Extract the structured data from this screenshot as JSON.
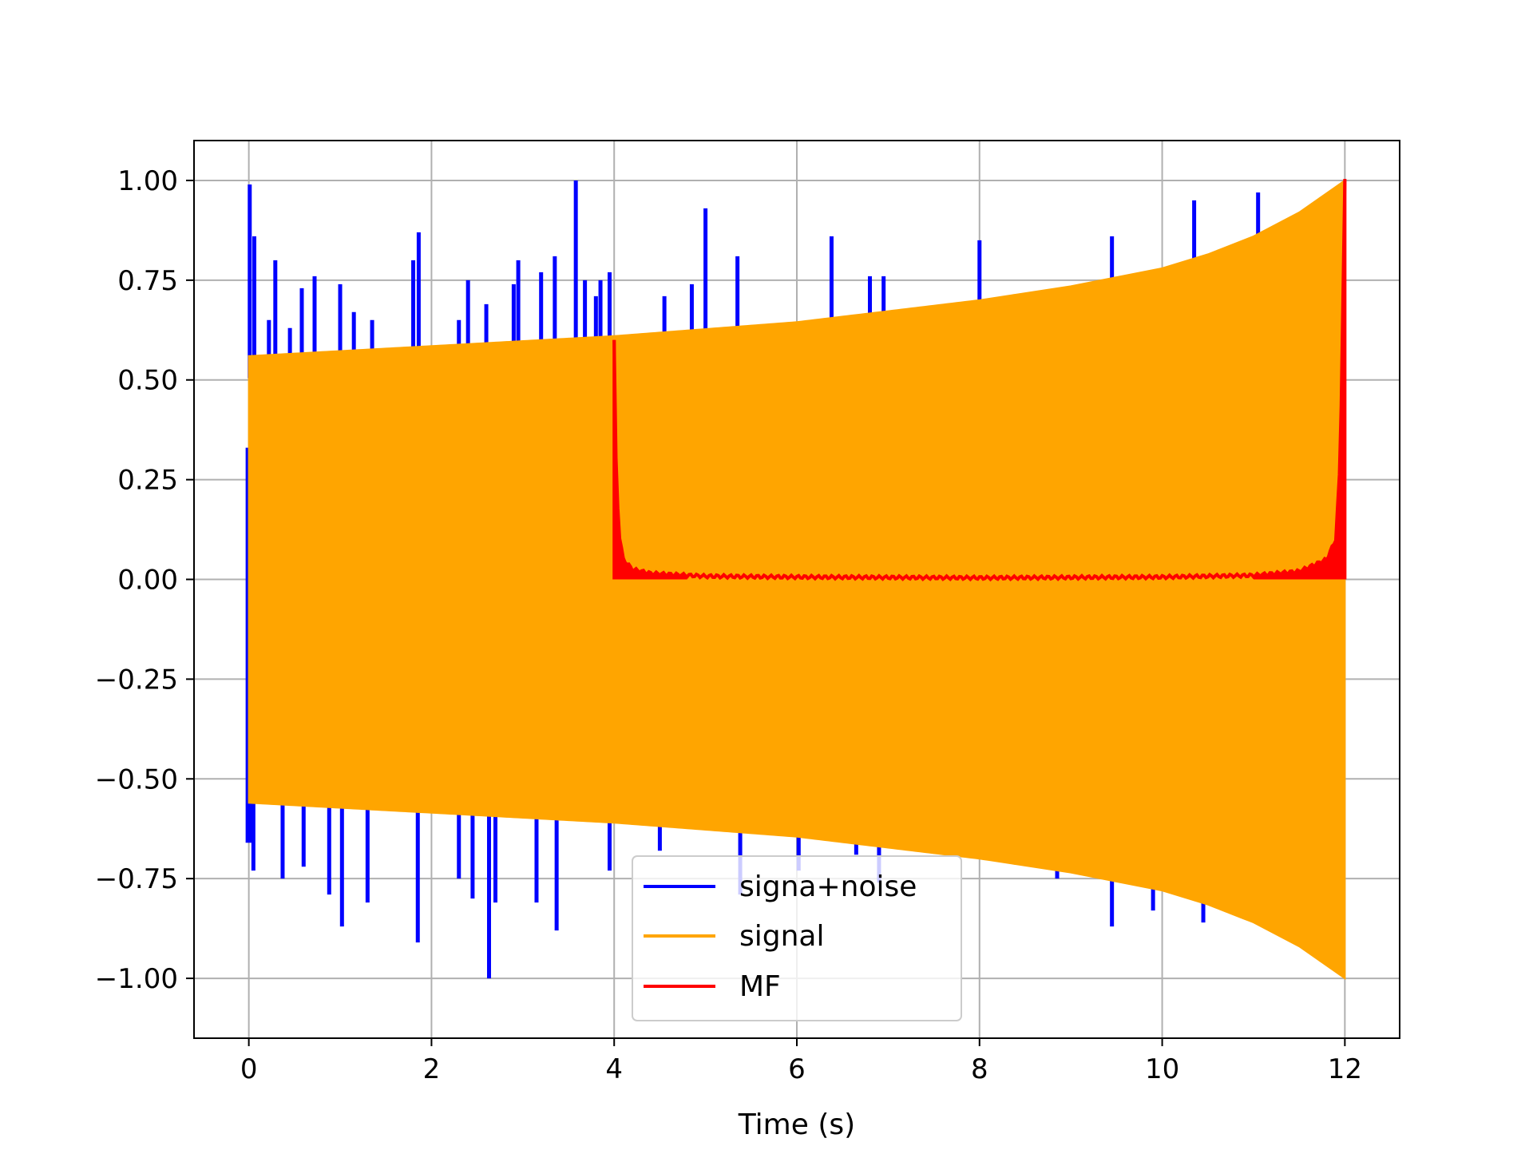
{
  "chart_data": {
    "type": "line",
    "title": "",
    "xlabel": "Time (s)",
    "ylabel": "",
    "xlim": [
      -0.6,
      12.6
    ],
    "ylim": [
      -1.15,
      1.1
    ],
    "x_ticks": [
      0,
      2,
      4,
      6,
      8,
      10,
      12
    ],
    "x_tick_labels": [
      "0",
      "2",
      "4",
      "6",
      "8",
      "10",
      "12"
    ],
    "y_ticks": [
      1.0,
      0.75,
      0.5,
      0.25,
      0.0,
      -0.25,
      -0.5,
      -0.75,
      -1.0
    ],
    "y_tick_labels": [
      "1.00",
      "0.75",
      "0.50",
      "0.25",
      "0.00",
      "−0.25",
      "−0.50",
      "−0.75",
      "−1.00"
    ],
    "grid": true,
    "legend_position": "lower-center",
    "series": [
      {
        "name": "signa+noise",
        "color": "#0000ff",
        "x_range": [
          0,
          12
        ],
        "baseline_envelope": {
          "x": [
            0,
            4,
            6,
            8,
            10,
            11,
            12
          ],
          "upper": [
            0.56,
            0.61,
            0.64,
            0.7,
            0.78,
            0.86,
            1.0
          ]
        },
        "spikes_up": [
          {
            "x": 0.01,
            "y": 0.99
          },
          {
            "x": 0.06,
            "y": 0.86
          },
          {
            "x": 0.22,
            "y": 0.65
          },
          {
            "x": 0.29,
            "y": 0.8
          },
          {
            "x": 0.45,
            "y": 0.63
          },
          {
            "x": 0.58,
            "y": 0.73
          },
          {
            "x": 0.72,
            "y": 0.76
          },
          {
            "x": 1.0,
            "y": 0.74
          },
          {
            "x": 1.15,
            "y": 0.67
          },
          {
            "x": 1.35,
            "y": 0.65
          },
          {
            "x": 1.8,
            "y": 0.8
          },
          {
            "x": 1.86,
            "y": 0.87
          },
          {
            "x": 2.3,
            "y": 0.65
          },
          {
            "x": 2.4,
            "y": 0.75
          },
          {
            "x": 2.6,
            "y": 0.69
          },
          {
            "x": 2.9,
            "y": 0.74
          },
          {
            "x": 2.95,
            "y": 0.8
          },
          {
            "x": 3.2,
            "y": 0.77
          },
          {
            "x": 3.35,
            "y": 0.81
          },
          {
            "x": 3.58,
            "y": 1.0
          },
          {
            "x": 3.68,
            "y": 0.75
          },
          {
            "x": 3.8,
            "y": 0.71
          },
          {
            "x": 3.85,
            "y": 0.75
          },
          {
            "x": 3.95,
            "y": 0.77
          },
          {
            "x": 4.55,
            "y": 0.71
          },
          {
            "x": 4.85,
            "y": 0.74
          },
          {
            "x": 5.0,
            "y": 0.93
          },
          {
            "x": 5.35,
            "y": 0.81
          },
          {
            "x": 5.9,
            "y": 0.61
          },
          {
            "x": 6.38,
            "y": 0.86
          },
          {
            "x": 6.8,
            "y": 0.76
          },
          {
            "x": 6.95,
            "y": 0.76
          },
          {
            "x": 8.0,
            "y": 0.85
          },
          {
            "x": 10.35,
            "y": 0.95
          },
          {
            "x": 11.05,
            "y": 0.97
          },
          {
            "x": 9.45,
            "y": 0.86
          }
        ],
        "spikes_down": [
          {
            "x": 0.02,
            "y": -0.66
          },
          {
            "x": 0.05,
            "y": -0.73
          },
          {
            "x": 0.37,
            "y": -0.75
          },
          {
            "x": 0.6,
            "y": -0.72
          },
          {
            "x": 0.88,
            "y": -0.79
          },
          {
            "x": 1.02,
            "y": -0.87
          },
          {
            "x": 1.3,
            "y": -0.81
          },
          {
            "x": 1.85,
            "y": -0.91
          },
          {
            "x": 2.3,
            "y": -0.75
          },
          {
            "x": 2.45,
            "y": -0.8
          },
          {
            "x": 2.63,
            "y": -1.0
          },
          {
            "x": 2.7,
            "y": -0.81
          },
          {
            "x": 3.15,
            "y": -0.81
          },
          {
            "x": 3.37,
            "y": -0.88
          },
          {
            "x": 3.95,
            "y": -0.73
          },
          {
            "x": 4.5,
            "y": -0.68
          },
          {
            "x": 5.38,
            "y": -0.79
          },
          {
            "x": 6.02,
            "y": -0.73
          },
          {
            "x": 6.65,
            "y": -0.69
          },
          {
            "x": 6.9,
            "y": -0.76
          },
          {
            "x": 8.85,
            "y": -0.75
          },
          {
            "x": 9.45,
            "y": -0.87
          },
          {
            "x": 9.9,
            "y": -0.83
          },
          {
            "x": 10.45,
            "y": -0.86
          }
        ]
      },
      {
        "name": "signal",
        "color": "#ffa500",
        "x_range": [
          0,
          12
        ],
        "envelope": {
          "x": [
            0,
            2,
            4,
            6,
            8,
            9,
            10,
            10.5,
            11,
            11.5,
            12
          ],
          "upper": [
            0.56,
            0.585,
            0.61,
            0.645,
            0.7,
            0.735,
            0.78,
            0.815,
            0.86,
            0.92,
            1.0
          ]
        }
      },
      {
        "name": "MF",
        "color": "#ff0000",
        "x_range": [
          4,
          12
        ],
        "x": [
          4.0,
          4.02,
          4.05,
          4.1,
          4.2,
          4.4,
          5,
          6,
          7,
          8,
          9,
          10,
          11,
          11.5,
          11.8,
          11.9,
          11.95,
          12.0
        ],
        "y": [
          0.6,
          0.3,
          0.12,
          0.05,
          0.025,
          0.015,
          0.008,
          0.006,
          0.005,
          0.004,
          0.005,
          0.006,
          0.01,
          0.02,
          0.05,
          0.1,
          0.3,
          1.0
        ]
      }
    ]
  }
}
